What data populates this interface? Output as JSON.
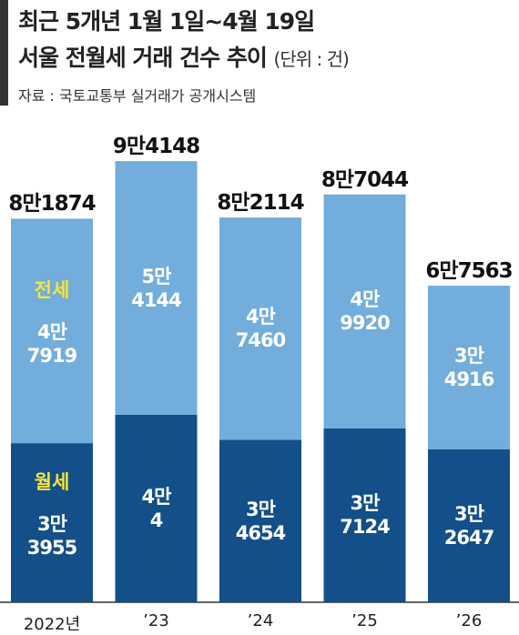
{
  "chart_data": {
    "type": "stacked-bar",
    "title": "최근 5개년 1월 1일~4월 19일",
    "subtitle": "서울 전월세 거래 건수 추이",
    "unit": "(단위 : 건)",
    "source": "자료 : 국토교통부 실거래가 공개시스템",
    "categories": [
      "2022년",
      "’23",
      "’24",
      "’25",
      "’26"
    ],
    "ylim": [
      0,
      100000
    ],
    "series": [
      {
        "name": "월세",
        "color": "#134f89",
        "label_color": "#f3e53c",
        "values": [
          33955,
          40004,
          34654,
          37124,
          32647
        ],
        "value_labels": [
          "3만\n3955",
          "4만\n4",
          "3만\n4654",
          "3만\n7124",
          "3만\n2647"
        ]
      },
      {
        "name": "전세",
        "color": "#72addb",
        "label_color": "#f3e53c",
        "values": [
          47919,
          54144,
          47460,
          49920,
          34916
        ],
        "value_labels": [
          "4만\n7919",
          "5만\n4144",
          "4만\n7460",
          "4만\n9920",
          "3만\n4916"
        ]
      }
    ],
    "totals": [
      81874,
      94148,
      82114,
      87044,
      67563
    ],
    "total_labels": [
      "8만1874",
      "9만4148",
      "8만2114",
      "8만7044",
      "6만7563"
    ]
  }
}
